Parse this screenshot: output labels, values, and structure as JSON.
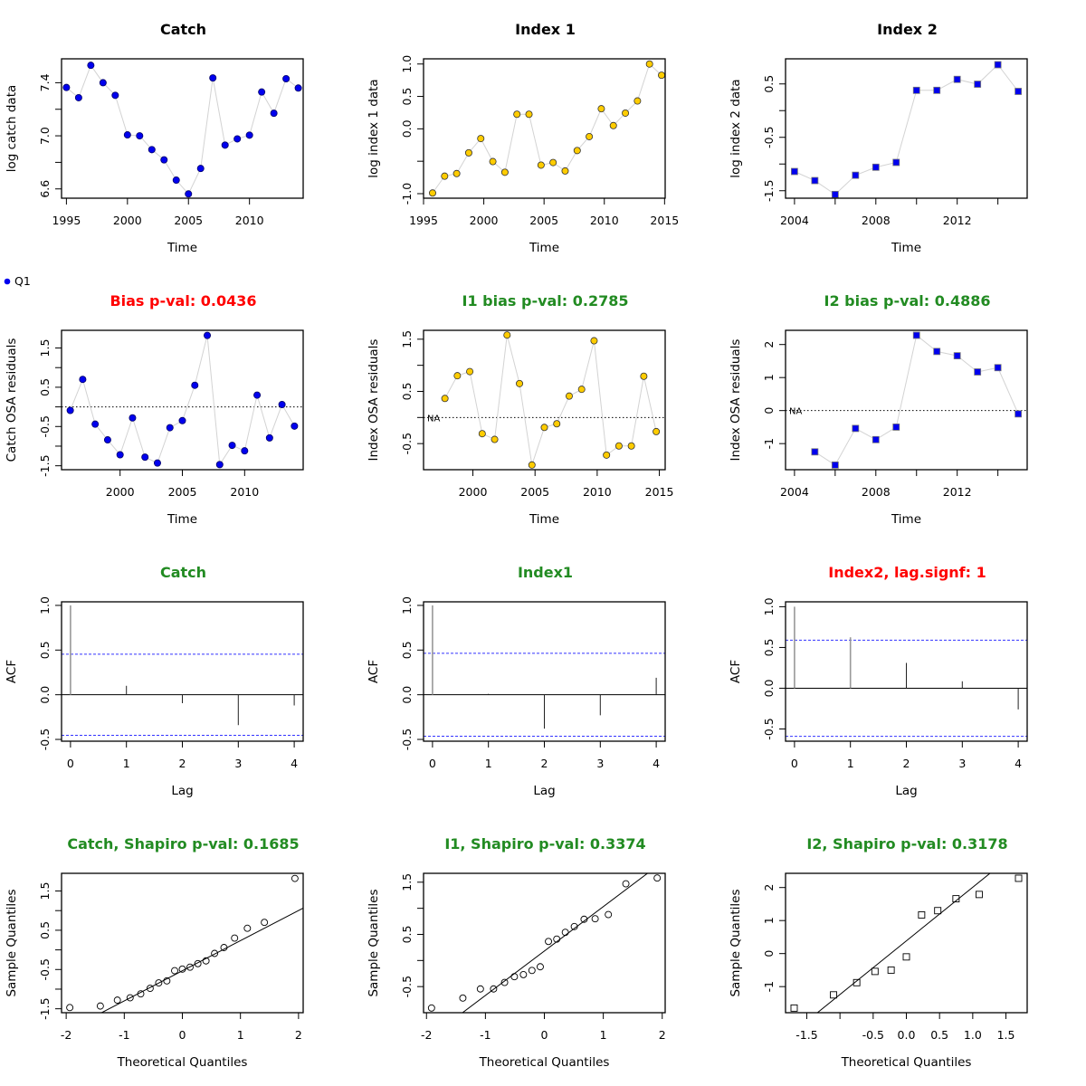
{
  "legend": {
    "label": "Q1",
    "color": "#0000ee"
  },
  "colors": {
    "blue": "#0000ee",
    "gold": "#ffcc00",
    "red": "#ff0000",
    "green": "#228b22",
    "ci": "#3333ff",
    "line": "#d3d3d3"
  },
  "chart_data": [
    {
      "id": "catch-data",
      "type": "line",
      "title": "Catch",
      "title_color": "#000000",
      "xlabel": "Time",
      "ylabel": "log catch data",
      "marker": "circle",
      "fill": "blue",
      "xlim": [
        1994.6,
        2014.4
      ],
      "ylim": [
        6.53,
        7.58
      ],
      "xticks": [
        1995,
        2000,
        2005,
        2010
      ],
      "yticks": [
        6.6,
        6.8,
        7.0,
        7.2,
        7.4
      ],
      "ytick_labels": [
        "6.6",
        "",
        "7.0",
        "",
        "7.4"
      ],
      "x": [
        1995,
        1996,
        1997,
        1998,
        1999,
        2000,
        2001,
        2002,
        2003,
        2004,
        2005,
        2006,
        2007,
        2008,
        2009,
        2010,
        2011,
        2012,
        2013,
        2014
      ],
      "y": [
        7.364,
        7.287,
        7.531,
        7.4,
        7.305,
        7.007,
        7.0,
        6.896,
        6.819,
        6.666,
        6.562,
        6.754,
        7.436,
        6.93,
        6.977,
        7.005,
        7.33,
        7.17,
        7.43,
        7.36
      ]
    },
    {
      "id": "index1-data",
      "type": "line",
      "title": "Index 1",
      "title_color": "#000000",
      "xlabel": "Time",
      "ylabel": "log index 1 data",
      "marker": "circle",
      "fill": "gold",
      "xlim": [
        1995,
        2015.05
      ],
      "ylim": [
        -1.07,
        1.08
      ],
      "xticks": [
        1995,
        2000,
        2005,
        2010,
        2015
      ],
      "yticks": [
        -1.0,
        -0.5,
        0.0,
        0.5,
        1.0
      ],
      "ytick_labels": [
        "-1.0",
        "",
        "0.0",
        "0.5",
        "1.0"
      ],
      "x": [
        1995.75,
        1996.75,
        1997.75,
        1998.75,
        1999.75,
        2000.75,
        2001.75,
        2002.75,
        2003.75,
        2004.75,
        2005.75,
        2006.75,
        2007.75,
        2008.75,
        2009.75,
        2010.75,
        2011.75,
        2012.75,
        2013.75,
        2014.75
      ],
      "y": [
        -0.99,
        -0.73,
        -0.69,
        -0.37,
        -0.15,
        -0.505,
        -0.67,
        0.225,
        0.225,
        -0.56,
        -0.52,
        -0.65,
        -0.335,
        -0.12,
        0.31,
        0.05,
        0.243,
        0.43,
        1.0,
        0.827
      ]
    },
    {
      "id": "index2-data",
      "type": "line",
      "title": "Index 2",
      "title_color": "#000000",
      "xlabel": "Time",
      "ylabel": "log index 2 data",
      "marker": "square",
      "fill": "blue",
      "xlim": [
        2003.56,
        2015.44
      ],
      "ylim": [
        -1.64,
        0.97
      ],
      "xticks": [
        2004,
        2008,
        2012
      ],
      "extra_xticks": [
        2006,
        2010,
        2014
      ],
      "yticks": [
        -1.5,
        -1.0,
        -0.5,
        0.0,
        0.5
      ],
      "ytick_labels": [
        "-1.5",
        "",
        "-0.5",
        "",
        "0.5"
      ],
      "x": [
        2004,
        2005,
        2006,
        2007,
        2008,
        2009,
        2010,
        2011,
        2012,
        2013,
        2014,
        2015
      ],
      "y": [
        -1.14,
        -1.31,
        -1.57,
        -1.21,
        -1.06,
        -0.97,
        0.38,
        0.38,
        0.585,
        0.495,
        0.86,
        0.36
      ]
    },
    {
      "id": "catch-resid",
      "type": "line",
      "title": "Bias p-val: 0.0436",
      "title_color": "red",
      "xlabel": "Time",
      "ylabel": "Catch OSA residuals",
      "marker": "circle",
      "fill": "blue",
      "hline": 0,
      "xlim": [
        1995.3,
        2014.7
      ],
      "ylim": [
        -1.6,
        1.95
      ],
      "xticks": [
        2000,
        2005,
        2010
      ],
      "yticks": [
        -1.5,
        -1.0,
        -0.5,
        0.0,
        0.5,
        1.0,
        1.5
      ],
      "ytick_labels": [
        "-1.5",
        "",
        "-0.5",
        "",
        "0.5",
        "",
        "1.5"
      ],
      "x": [
        1996,
        1997,
        1998,
        1999,
        2000,
        2001,
        2002,
        2003,
        2004,
        2005,
        2006,
        2007,
        2008,
        2009,
        2010,
        2011,
        2012,
        2013,
        2014
      ],
      "y": [
        -0.09,
        0.7,
        -0.44,
        -0.84,
        -1.22,
        -0.28,
        -1.28,
        -1.43,
        -0.53,
        -0.35,
        0.55,
        1.82,
        -1.47,
        -0.98,
        -1.12,
        0.3,
        -0.79,
        0.06,
        -0.49
      ]
    },
    {
      "id": "index1-resid",
      "type": "line",
      "title": "I1 bias p-val: 0.2785",
      "title_color": "green",
      "xlabel": "Time",
      "ylabel": "Index OSA residuals",
      "marker": "circle",
      "fill": "gold",
      "hline": 0,
      "na_label": "NA",
      "xlim": [
        1996.03,
        2015.47
      ],
      "ylim": [
        -1.0,
        1.67
      ],
      "xticks": [
        2000,
        2005,
        2010,
        2015
      ],
      "yticks": [
        -0.5,
        0.0,
        0.5,
        1.0,
        1.5
      ],
      "ytick_labels": [
        "-0.5",
        "",
        "0.5",
        "",
        "1.5"
      ],
      "x": [
        1997.75,
        1998.75,
        1999.75,
        2000.75,
        2001.75,
        2002.75,
        2003.75,
        2004.75,
        2005.75,
        2006.75,
        2007.75,
        2008.75,
        2009.75,
        2010.75,
        2011.75,
        2012.75,
        2013.75,
        2014.75
      ],
      "y": [
        0.365,
        0.8,
        0.88,
        -0.31,
        -0.42,
        1.58,
        0.65,
        -0.91,
        -0.19,
        -0.12,
        0.41,
        0.54,
        1.47,
        -0.72,
        -0.545,
        -0.545,
        0.79,
        -0.27
      ]
    },
    {
      "id": "index2-resid",
      "type": "line",
      "title": "I2 bias p-val: 0.4886",
      "title_color": "green",
      "xlabel": "Time",
      "ylabel": "Index OSA residuals",
      "marker": "square",
      "fill": "blue",
      "hline": 0,
      "na_label": "NA",
      "xlim": [
        2003.56,
        2015.44
      ],
      "ylim": [
        -1.79,
        2.43
      ],
      "xticks": [
        2004,
        2008,
        2012
      ],
      "extra_xticks": [
        2006,
        2010,
        2014
      ],
      "yticks": [
        -1,
        0,
        1,
        2
      ],
      "ytick_labels": [
        "-1",
        "0",
        "1",
        "2"
      ],
      "x": [
        2005,
        2006,
        2007,
        2008,
        2009,
        2010,
        2011,
        2012,
        2013,
        2014,
        2015
      ],
      "y": [
        -1.25,
        -1.65,
        -0.54,
        -0.88,
        -0.5,
        2.28,
        1.79,
        1.66,
        1.17,
        1.3,
        -0.1
      ]
    },
    {
      "id": "catch-acf",
      "type": "bar",
      "title": "Catch",
      "title_color": "green",
      "xlabel": "Lag",
      "ylabel": "ACF",
      "ci": 0.454,
      "xlim": [
        -0.16,
        4.16
      ],
      "ylim": [
        -0.52,
        1.04
      ],
      "xticks": [
        0,
        1,
        2,
        3,
        4
      ],
      "yticks": [
        -0.5,
        0.0,
        0.5,
        1.0
      ],
      "ytick_labels": [
        "-0.5",
        "0.0",
        "0.5",
        "1.0"
      ],
      "lags": [
        0,
        1,
        2,
        3,
        4
      ],
      "acf": [
        1.0,
        0.1,
        -0.095,
        -0.34,
        -0.12
      ]
    },
    {
      "id": "index1-acf",
      "type": "bar",
      "title": "Index1",
      "title_color": "green",
      "xlabel": "Lag",
      "ylabel": "ACF",
      "ci": 0.464,
      "xlim": [
        -0.16,
        4.16
      ],
      "ylim": [
        -0.52,
        1.04
      ],
      "xticks": [
        0,
        1,
        2,
        3,
        4
      ],
      "yticks": [
        -0.5,
        0.0,
        0.5,
        1.0
      ],
      "ytick_labels": [
        "-0.5",
        "0.0",
        "0.5",
        "1.0"
      ],
      "lags": [
        0,
        1,
        2,
        3,
        4
      ],
      "acf": [
        1.0,
        0.01,
        -0.38,
        -0.23,
        0.19
      ]
    },
    {
      "id": "index2-acf",
      "type": "bar",
      "title": "Index2, lag.signf: 1",
      "title_color": "red",
      "xlabel": "Lag",
      "ylabel": "ACF",
      "ci": 0.59,
      "xlim": [
        -0.16,
        4.16
      ],
      "ylim": [
        -0.65,
        1.06
      ],
      "xticks": [
        0,
        1,
        2,
        3,
        4
      ],
      "yticks": [
        -0.5,
        0.0,
        0.5,
        1.0
      ],
      "ytick_labels": [
        "-0.5",
        "0.0",
        "0.5",
        "1.0"
      ],
      "lags": [
        0,
        1,
        2,
        3,
        4
      ],
      "acf": [
        1.0,
        0.625,
        0.31,
        0.085,
        -0.26
      ]
    },
    {
      "id": "catch-qq",
      "type": "scatter",
      "title": "Catch, Shapiro p-val: 0.1685",
      "title_color": "green",
      "xlabel": "Theoretical Quantiles",
      "ylabel": "Sample Quantiles",
      "marker": "open-circle",
      "source": "catch-resid",
      "xlim": [
        -2.08,
        2.08
      ],
      "ylim": [
        -1.6,
        1.95
      ],
      "xticks": [
        -2,
        -1,
        0,
        1,
        2
      ],
      "yticks": [
        -1.5,
        -1.0,
        -0.5,
        0.0,
        0.5,
        1.0,
        1.5
      ],
      "ytick_labels": [
        "-1.5",
        "",
        "-0.5",
        "",
        "0.5",
        "",
        "1.5"
      ]
    },
    {
      "id": "index1-qq",
      "type": "scatter",
      "title": "I1, Shapiro p-val: 0.3374",
      "title_color": "green",
      "xlabel": "Theoretical Quantiles",
      "ylabel": "Sample Quantiles",
      "marker": "open-circle",
      "source": "index1-resid",
      "xlim": [
        -2.05,
        2.05
      ],
      "ylim": [
        -1.0,
        1.67
      ],
      "xticks": [
        -2,
        -1,
        0,
        1,
        2
      ],
      "yticks": [
        -0.5,
        0.0,
        0.5,
        1.0,
        1.5
      ],
      "ytick_labels": [
        "-0.5",
        "",
        "0.5",
        "",
        "1.5"
      ]
    },
    {
      "id": "index2-qq",
      "type": "scatter",
      "title": "I2, Shapiro p-val: 0.3178",
      "title_color": "green",
      "xlabel": "Theoretical Quantiles",
      "ylabel": "Sample Quantiles",
      "marker": "open-square",
      "source": "index2-resid",
      "xlim": [
        -1.82,
        1.82
      ],
      "ylim": [
        -1.79,
        2.43
      ],
      "xticks": [
        -1.5,
        -1.0,
        -0.5,
        0.0,
        0.5,
        1.0,
        1.5
      ],
      "xtick_labels": [
        "-1.5",
        "",
        "-0.5",
        "0.0",
        "0.5",
        "1.0",
        "1.5"
      ],
      "yticks": [
        -1,
        0,
        1,
        2
      ],
      "ytick_labels": [
        "-1",
        "0",
        "1",
        "2"
      ]
    }
  ]
}
